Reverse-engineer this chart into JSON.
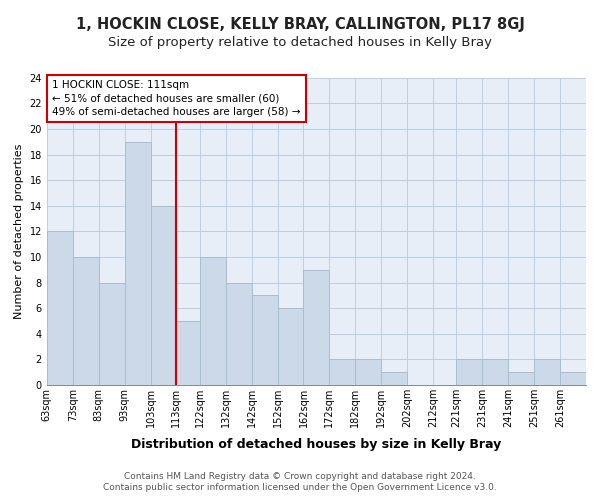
{
  "title": "1, HOCKIN CLOSE, KELLY BRAY, CALLINGTON, PL17 8GJ",
  "subtitle": "Size of property relative to detached houses in Kelly Bray",
  "xlabel": "Distribution of detached houses by size in Kelly Bray",
  "ylabel": "Number of detached properties",
  "bar_color": "#ccd9e8",
  "bar_edge_color": "#a8becc",
  "vline_x": 113,
  "vline_color": "#cc0000",
  "annotation_title": "1 HOCKIN CLOSE: 111sqm",
  "annotation_line1": "← 51% of detached houses are smaller (60)",
  "annotation_line2": "49% of semi-detached houses are larger (58) →",
  "annotation_box_color": "white",
  "annotation_box_edge": "#cc0000",
  "bins": [
    63,
    73,
    83,
    93,
    103,
    113,
    122,
    132,
    142,
    152,
    162,
    172,
    182,
    192,
    202,
    212,
    221,
    231,
    241,
    251,
    261
  ],
  "counts": [
    12,
    10,
    8,
    19,
    14,
    5,
    10,
    8,
    7,
    6,
    9,
    2,
    2,
    1,
    0,
    0,
    2,
    2,
    1,
    2,
    1
  ],
  "xlim": [
    63,
    271
  ],
  "ylim": [
    0,
    24
  ],
  "yticks": [
    0,
    2,
    4,
    6,
    8,
    10,
    12,
    14,
    16,
    18,
    20,
    22,
    24
  ],
  "xtick_labels": [
    "63sqm",
    "73sqm",
    "83sqm",
    "93sqm",
    "103sqm",
    "113sqm",
    "122sqm",
    "132sqm",
    "142sqm",
    "152sqm",
    "162sqm",
    "172sqm",
    "182sqm",
    "192sqm",
    "202sqm",
    "212sqm",
    "221sqm",
    "231sqm",
    "241sqm",
    "251sqm",
    "261sqm"
  ],
  "footer_line1": "Contains HM Land Registry data © Crown copyright and database right 2024.",
  "footer_line2": "Contains public sector information licensed under the Open Government Licence v3.0.",
  "bg_color": "#ffffff",
  "plot_bg_color": "#e8eef8",
  "grid_color": "#c0cce0",
  "title_fontsize": 10.5,
  "subtitle_fontsize": 9.5,
  "xlabel_fontsize": 9,
  "ylabel_fontsize": 8,
  "tick_fontsize": 7,
  "annotation_fontsize": 7.5,
  "footer_fontsize": 6.5
}
